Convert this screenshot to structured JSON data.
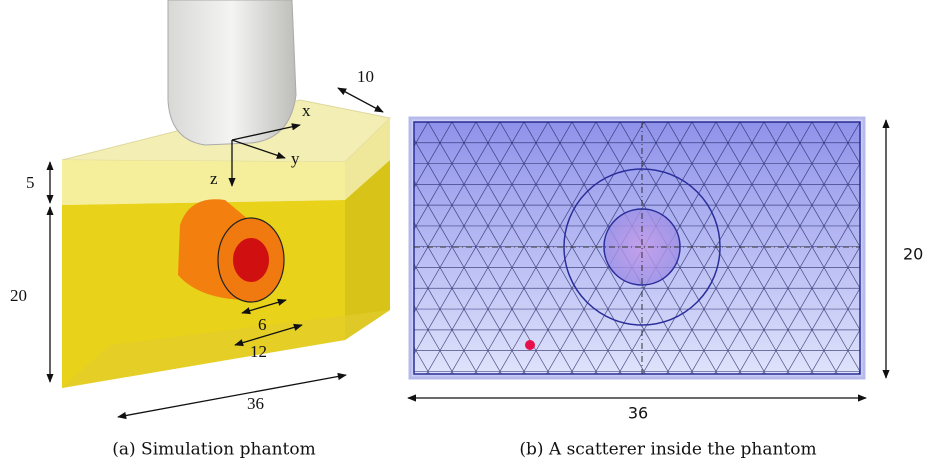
{
  "panel_a": {
    "labels": {
      "depth": "10",
      "x": "x",
      "y": "y",
      "z": "z",
      "layer": "5",
      "height": "20",
      "inner": "6",
      "outer": "12",
      "width": "36"
    },
    "caption": "(a) Simulation phantom"
  },
  "panel_b": {
    "height": "20",
    "width": "36",
    "caption": "(b) A scatterer inside the phantom"
  }
}
